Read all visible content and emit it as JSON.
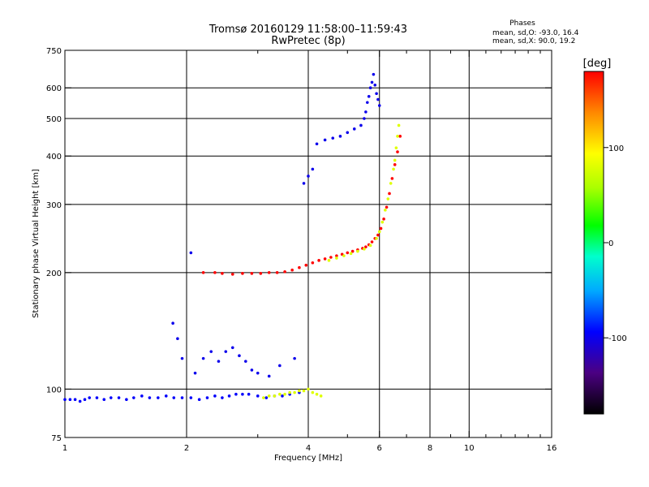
{
  "chart_data": {
    "type": "scatter",
    "title": "Tromsø 20160129 11:58:00–11:59:43",
    "subtitle": "RwPretec (8p)",
    "info": {
      "heading": "Phases",
      "line1": "mean, sd,O: -93.0, 16.4",
      "line2": "mean, sd,X:  90.0, 19.2"
    },
    "xlabel": "Frequency [MHz]",
    "ylabel": "Stationary phase Virtual Height [km]",
    "x_scale": "log",
    "y_scale": "log",
    "xlim": [
      1,
      16
    ],
    "ylim": [
      75,
      750
    ],
    "grid": true,
    "x_ticks": [
      1,
      2,
      4,
      6,
      8,
      10,
      16
    ],
    "x_minor_ticks": [
      3,
      5,
      7,
      9,
      11,
      12,
      13,
      14,
      15
    ],
    "x_grid": [
      2,
      4,
      6,
      8,
      10
    ],
    "y_ticks": [
      75,
      100,
      200,
      300,
      400,
      500,
      600,
      750
    ],
    "y_grid": [
      100,
      200,
      300,
      400,
      500,
      600
    ],
    "colorbar": {
      "label": "[deg]",
      "range": [
        -180,
        180
      ],
      "ticks": [
        100,
        0,
        -100
      ]
    },
    "series": [
      {
        "color_phase": -95,
        "x": [
          1.0,
          1.03,
          1.06,
          1.09,
          1.12,
          1.15,
          1.2,
          1.25,
          1.3,
          1.36,
          1.42,
          1.48,
          1.55,
          1.62,
          1.7,
          1.78,
          1.86,
          1.95,
          2.05,
          2.15,
          2.25,
          2.35,
          2.45,
          2.55,
          2.65,
          2.75,
          2.85,
          3.0,
          3.15,
          3.3,
          3.45,
          3.6,
          3.8
        ],
        "y": [
          94,
          94,
          94,
          93,
          94,
          95,
          95,
          94,
          95,
          95,
          94,
          95,
          96,
          95,
          95,
          96,
          95,
          95,
          95,
          94,
          95,
          96,
          95,
          96,
          97,
          97,
          97,
          96,
          95,
          96,
          96,
          97,
          98
        ]
      },
      {
        "color_phase": 180,
        "x": [
          2.2,
          2.35,
          2.45,
          2.6,
          2.75,
          2.9,
          3.05,
          3.2,
          3.35,
          3.5,
          3.65,
          3.8,
          3.95,
          4.1,
          4.25,
          4.4,
          4.55,
          4.7,
          4.85,
          5.0,
          5.15,
          5.3,
          5.45,
          5.55,
          5.65,
          5.75,
          5.85,
          5.95,
          6.05,
          6.15,
          6.25,
          6.35,
          6.45,
          6.55,
          6.65,
          6.75
        ],
        "y": [
          200,
          200,
          199,
          198,
          199,
          199,
          199,
          200,
          200,
          201,
          203,
          206,
          209,
          212,
          215,
          217,
          219,
          221,
          223,
          225,
          227,
          229,
          231,
          233,
          236,
          240,
          245,
          250,
          260,
          275,
          295,
          320,
          350,
          380,
          410,
          450
        ]
      },
      {
        "color_phase": 80,
        "x": [
          3.1,
          3.2,
          3.3,
          3.4,
          3.5,
          3.6,
          3.7,
          3.8,
          3.9,
          4.0,
          4.1,
          4.2,
          4.3,
          4.5,
          4.7,
          4.9,
          5.1,
          5.3,
          5.5,
          5.7,
          5.9,
          6.0,
          6.1,
          6.2,
          6.3,
          6.4,
          6.5,
          6.55,
          6.6,
          6.65,
          6.7
        ],
        "y": [
          95,
          96,
          96,
          97,
          97,
          98,
          98,
          99,
          99,
          100,
          98,
          97,
          96,
          215,
          218,
          221,
          224,
          227,
          230,
          235,
          245,
          255,
          270,
          290,
          310,
          340,
          370,
          390,
          420,
          450,
          480
        ]
      },
      {
        "color_phase": -100,
        "x": [
          1.85,
          1.9,
          1.95,
          2.05,
          2.1,
          2.2,
          2.3,
          2.4,
          2.5,
          2.6,
          2.7,
          2.8,
          2.9,
          3.0,
          3.2,
          3.4,
          3.7,
          3.9,
          4.0,
          4.1,
          4.2,
          4.4,
          4.6,
          4.8,
          5.0,
          5.2,
          5.4,
          5.5,
          5.55,
          5.6,
          5.65,
          5.7,
          5.75,
          5.8,
          5.85,
          5.9,
          5.95,
          6.0
        ],
        "y": [
          148,
          135,
          120,
          225,
          110,
          120,
          125,
          118,
          125,
          128,
          122,
          118,
          112,
          110,
          108,
          115,
          120,
          340,
          355,
          370,
          430,
          440,
          445,
          450,
          460,
          470,
          480,
          500,
          520,
          550,
          570,
          600,
          620,
          650,
          610,
          580,
          560,
          540
        ]
      }
    ]
  }
}
